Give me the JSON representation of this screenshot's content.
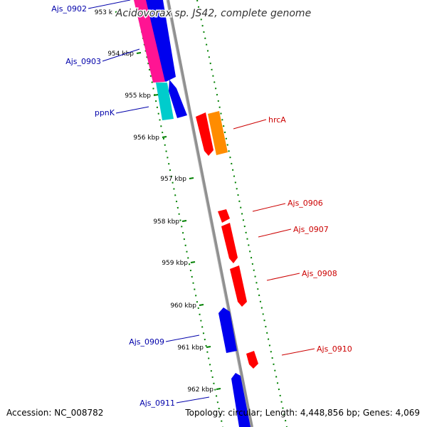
{
  "title": "Acidovorax sp. JS42, complete genome",
  "accession": "Accession: NC_008782",
  "summary": "Topology: circular; Length: 4,448,856 bp; Genes: 4,069",
  "tick_labels": [
    "953 k",
    "954 kbp",
    "955 kbp",
    "956 kbp",
    "957 kbp",
    "958 kbp",
    "959 kbp",
    "960 kbp",
    "961 kbp",
    "962 kbp"
  ],
  "genes": [
    {
      "id": "Ajs_0902",
      "label": "Ajs_0902",
      "color": "#0000ee",
      "label_color": "#0000aa",
      "side": "left"
    },
    {
      "id": "Ajs_0903",
      "label": "Ajs_0903",
      "color": "#0000ee",
      "label_color": "#0000aa",
      "side": "left"
    },
    {
      "id": "ppnK",
      "label": "ppnK",
      "color": "#0000ee",
      "label_color": "#0000aa",
      "side": "left"
    },
    {
      "id": "hrcA",
      "label": "hrcA",
      "color": "#ff0000",
      "label_color": "#cc0000",
      "side": "right"
    },
    {
      "id": "Ajs_0906",
      "label": "Ajs_0906",
      "color": "#ff0000",
      "label_color": "#cc0000",
      "side": "right"
    },
    {
      "id": "Ajs_0907",
      "label": "Ajs_0907",
      "color": "#ff0000",
      "label_color": "#cc0000",
      "side": "right"
    },
    {
      "id": "Ajs_0908",
      "label": "Ajs_0908",
      "color": "#ff0000",
      "label_color": "#cc0000",
      "side": "right"
    },
    {
      "id": "Ajs_0909",
      "label": "Ajs_0909",
      "color": "#0000ee",
      "label_color": "#0000aa",
      "side": "left"
    },
    {
      "id": "Ajs_0910",
      "label": "Ajs_0910",
      "color": "#ff0000",
      "label_color": "#cc0000",
      "side": "right"
    },
    {
      "id": "Ajs_0911",
      "label": "Ajs_0911",
      "color": "#0000ee",
      "label_color": "#0000aa",
      "side": "left"
    }
  ],
  "feature_colors": {
    "forward_cds": "#ff0000",
    "reverse_cds": "#0000ee",
    "pink_feature": "#ff1493",
    "cyan_feature": "#00cccc",
    "orange_feature": "#ff8c00",
    "backbone": "#808080",
    "tick_marks": "#008000"
  }
}
